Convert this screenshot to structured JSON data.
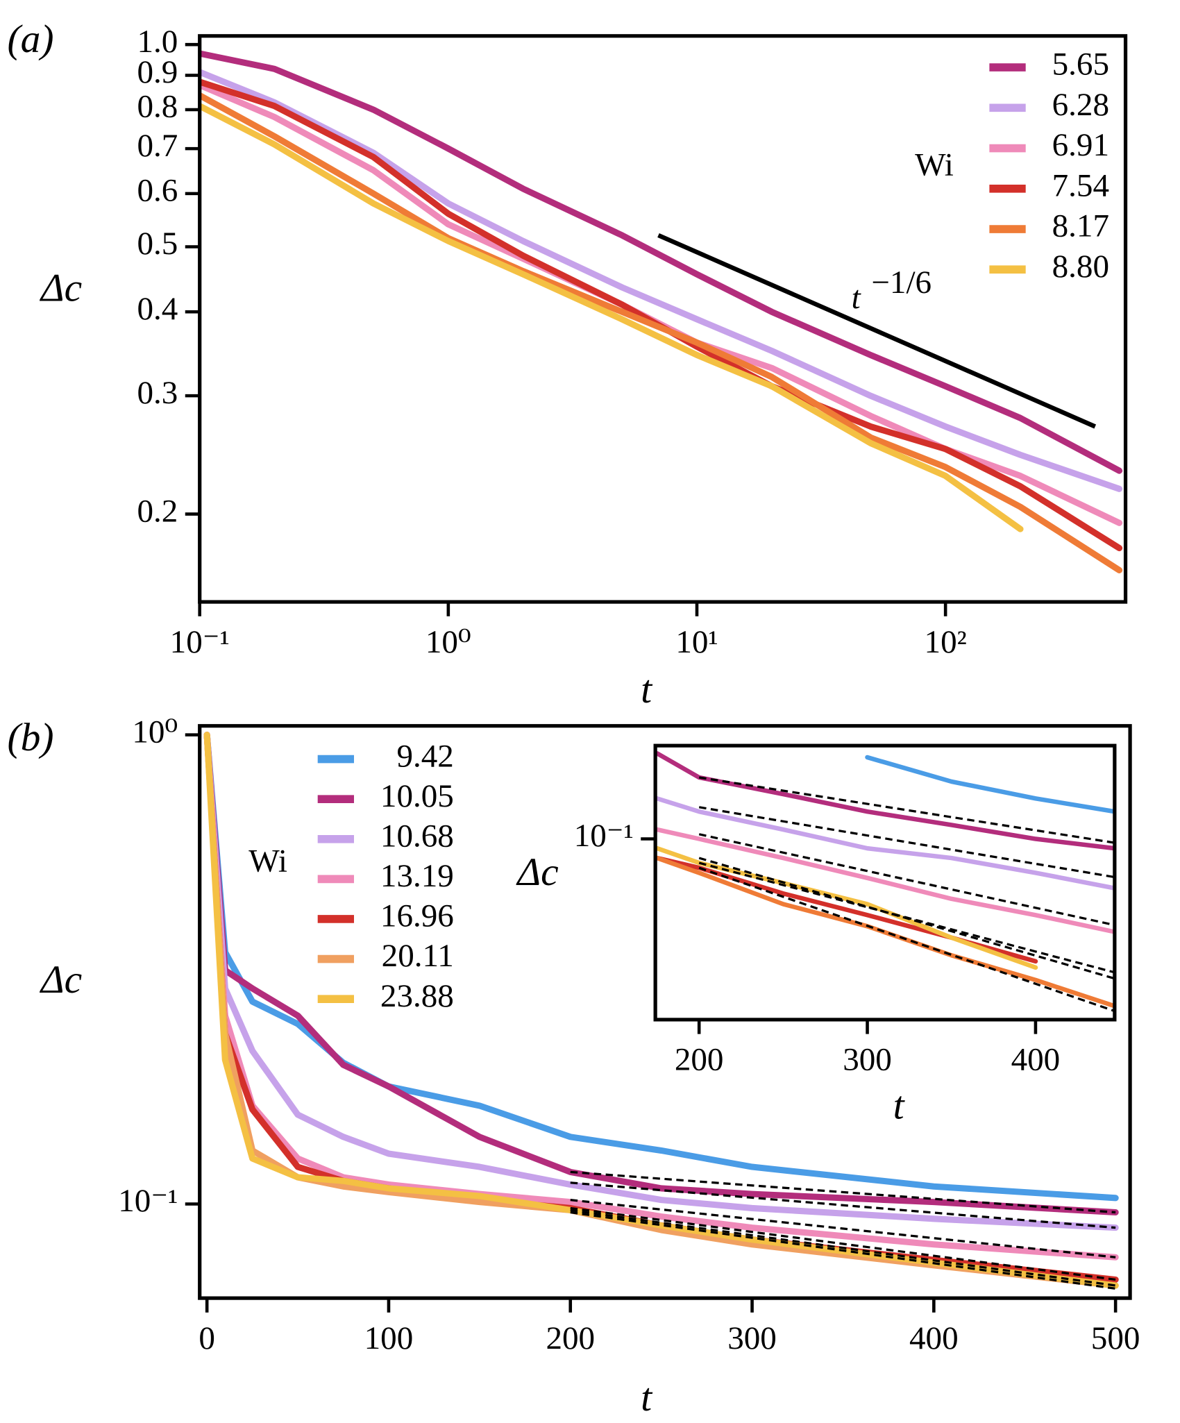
{
  "chart_data": [
    {
      "type": "line",
      "panel_label": "(a)",
      "xlabel": "t",
      "ylabel": "Δc",
      "xscale": "log",
      "yscale": "log",
      "xlim": [
        0.1,
        530
      ],
      "ylim": [
        0.148,
        1.03
      ],
      "xticks": [
        {
          "value": 0.1,
          "label": "10⁻¹"
        },
        {
          "value": 1,
          "label": "10⁰"
        },
        {
          "value": 10,
          "label": "10¹"
        },
        {
          "value": 100,
          "label": "10²"
        }
      ],
      "yticks": [
        0.2,
        0.3,
        0.4,
        0.5,
        0.6,
        0.7,
        0.8,
        0.9,
        {
          "value": 1,
          "label": "1.0"
        }
      ],
      "legend": "upper right",
      "legend_title": "Wi",
      "x": [
        0.1,
        0.2,
        0.5,
        1,
        2,
        5,
        10,
        20,
        50,
        100,
        200,
        500
      ],
      "series": [
        {
          "name": "5.65",
          "color": "#b32d7c",
          "values": [
            0.97,
            0.92,
            0.8,
            0.7,
            0.61,
            0.52,
            0.455,
            0.4,
            0.345,
            0.31,
            0.278,
            0.232
          ]
        },
        {
          "name": "6.28",
          "color": "#c6a2ea",
          "values": [
            0.91,
            0.82,
            0.69,
            0.58,
            0.51,
            0.435,
            0.39,
            0.35,
            0.3,
            0.27,
            0.245,
            0.218
          ]
        },
        {
          "name": "6.91",
          "color": "#ef8ab9",
          "values": [
            0.87,
            0.78,
            0.65,
            0.54,
            0.48,
            0.41,
            0.36,
            0.33,
            0.28,
            0.25,
            0.228,
            0.194
          ]
        },
        {
          "name": "7.54",
          "color": "#d3302a",
          "values": [
            0.88,
            0.81,
            0.68,
            0.56,
            0.485,
            0.41,
            0.355,
            0.31,
            0.27,
            0.25,
            0.22,
            0.178
          ]
        },
        {
          "name": "8.17",
          "color": "#ef7b36",
          "values": [
            0.84,
            0.73,
            0.6,
            0.515,
            0.46,
            0.4,
            0.36,
            0.32,
            0.26,
            0.235,
            0.205,
            0.165
          ]
        },
        {
          "name": "8.80",
          "color": "#f4c043",
          "values": [
            0.81,
            0.71,
            0.58,
            0.51,
            0.455,
            0.39,
            0.345,
            0.31,
            0.255,
            0.228,
            0.19,
            null
          ]
        }
      ],
      "reference_line": {
        "x": [
          7,
          400
        ],
        "values": [
          0.52,
          0.27
        ],
        "color": "#000000"
      },
      "annotation": {
        "text": "t",
        "exponent": "−1/6"
      }
    },
    {
      "type": "line",
      "panel_label": "(b)",
      "xlabel": "t",
      "ylabel": "Δc",
      "xscale": "linear",
      "yscale": "log",
      "xlim": [
        -4,
        508
      ],
      "ylim": [
        0.063,
        1.045
      ],
      "xticks": [
        0,
        100,
        200,
        300,
        400,
        500
      ],
      "yticks": [
        {
          "value": 0.1,
          "label": "10⁻¹"
        },
        {
          "value": 1,
          "label": "10⁰"
        }
      ],
      "legend": "upper left",
      "legend_title": "Wi",
      "x": [
        0,
        10,
        25,
        50,
        75,
        100,
        150,
        200,
        250,
        300,
        400,
        500
      ],
      "fit_x": [
        200,
        500
      ],
      "series": [
        {
          "name": "9.42",
          "color": "#4a9ce6",
          "values": [
            1.0,
            0.344,
            0.27,
            0.242,
            0.2,
            0.178,
            0.162,
            0.139,
            0.13,
            0.12,
            0.109,
            0.103
          ]
        },
        {
          "name": "10.05",
          "color": "#b32d7c",
          "values": [
            1.0,
            0.315,
            0.288,
            0.252,
            0.198,
            0.178,
            0.139,
            0.117,
            0.108,
            0.105,
            0.101,
            0.096
          ],
          "fit_values": [
            0.117,
            0.096
          ]
        },
        {
          "name": "10.68",
          "color": "#c6a2ea",
          "values": [
            1.0,
            0.288,
            0.212,
            0.155,
            0.139,
            0.128,
            0.12,
            0.11,
            0.102,
            0.098,
            0.093,
            0.089
          ],
          "fit_values": [
            0.111,
            0.089
          ]
        },
        {
          "name": "13.19",
          "color": "#ef8ab9",
          "values": [
            1.0,
            0.252,
            0.162,
            0.125,
            0.114,
            0.11,
            0.105,
            0.101,
            0.094,
            0.089,
            0.082,
            0.077
          ],
          "fit_values": [
            0.102,
            0.077
          ]
        },
        {
          "name": "16.96",
          "color": "#d3302a",
          "values": [
            1.0,
            0.231,
            0.159,
            0.12,
            0.112,
            0.108,
            0.102,
            0.098,
            0.09,
            0.084,
            0.076,
            0.069
          ],
          "fit_values": [
            0.098,
            0.069
          ]
        },
        {
          "name": "20.11",
          "color": "#f0a060",
          "values": [
            1.0,
            0.231,
            0.13,
            0.114,
            0.109,
            0.106,
            0.101,
            0.097,
            0.088,
            0.082,
            0.074,
            0.067
          ],
          "fit_values": [
            0.096,
            0.066
          ]
        },
        {
          "name": "23.88",
          "color": "#f4c043",
          "values": [
            1.0,
            0.203,
            0.125,
            0.114,
            0.112,
            0.108,
            0.104,
            0.097,
            0.09,
            0.084,
            0.075,
            0.067
          ],
          "fit_values": [
            0.097,
            0.067
          ]
        }
      ]
    },
    {
      "type": "line",
      "xlabel": "t",
      "ylabel": "Δc",
      "xscale": "linear",
      "yscale": "log",
      "xlim": [
        174,
        447
      ],
      "ylim": [
        0.068,
        0.122
      ],
      "xticks": [
        200,
        300,
        400
      ],
      "yticks": [
        {
          "value": 0.1,
          "label": "10⁻¹"
        }
      ],
      "x": [
        175,
        200,
        250,
        300,
        350,
        400,
        447
      ],
      "fit_x": [
        200,
        450
      ],
      "series": [
        {
          "color": "#4a9ce6",
          "values": [
            null,
            null,
            null,
            0.119,
            0.113,
            0.109,
            0.106
          ]
        },
        {
          "color": "#b32d7c",
          "values": [
            0.12,
            0.114,
            0.11,
            0.106,
            0.103,
            0.1,
            0.098
          ],
          "fit_values": [
            0.114,
            0.099
          ]
        },
        {
          "color": "#c6a2ea",
          "values": [
            0.109,
            0.106,
            0.102,
            0.098,
            0.096,
            0.093,
            0.09
          ],
          "fit_values": [
            0.107,
            0.092
          ]
        },
        {
          "color": "#ef8ab9",
          "values": [
            0.102,
            0.1,
            0.096,
            0.092,
            0.088,
            0.085,
            0.082
          ],
          "fit_values": [
            0.101,
            0.083
          ]
        },
        {
          "color": "#d3302a",
          "values": [
            0.096,
            0.094,
            0.089,
            0.085,
            0.081,
            0.077,
            null
          ],
          "fit_values": [
            0.095,
            0.075
          ]
        },
        {
          "color": "#ef7b36",
          "values": [
            0.096,
            0.093,
            0.087,
            0.083,
            0.078,
            0.074,
            0.07
          ],
          "fit_values": [
            0.094,
            0.069
          ]
        },
        {
          "color": "#f4c043",
          "values": [
            0.098,
            0.095,
            0.091,
            0.087,
            0.081,
            0.076,
            null
          ],
          "fit_values": [
            0.096,
            0.074
          ]
        }
      ]
    }
  ]
}
